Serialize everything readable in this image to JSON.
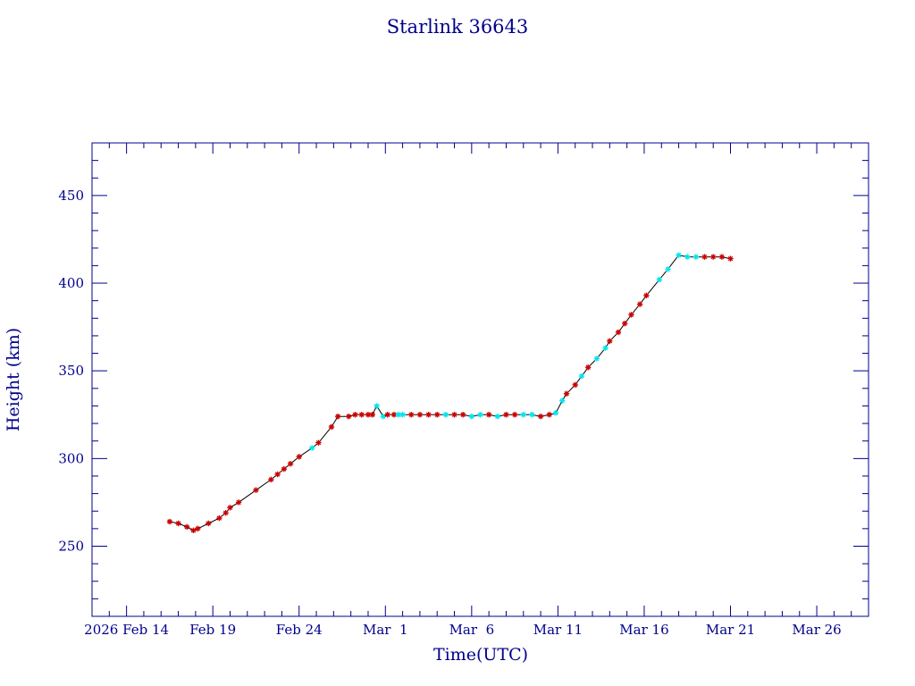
{
  "chart_data": {
    "type": "line",
    "title": "Starlink 36643",
    "xlabel": "Time(UTC)",
    "ylabel": "Height (km)",
    "x_range": [
      "2026-02-12",
      "2026-03-29"
    ],
    "ylim": [
      210,
      480
    ],
    "grid": false,
    "legend": "none",
    "colors": {
      "axes": "#00008b",
      "line": "#000000",
      "marker_primary": "#cc0000",
      "marker_secondary": "#00e5ee"
    },
    "x_ticks": [
      {
        "date": "2026-02-14",
        "label": "2026 Feb 14"
      },
      {
        "date": "2026-02-19",
        "label": "Feb 19"
      },
      {
        "date": "2026-02-24",
        "label": "Feb 24"
      },
      {
        "date": "2026-03-01",
        "label": "Mar  1"
      },
      {
        "date": "2026-03-06",
        "label": "Mar  6"
      },
      {
        "date": "2026-03-11",
        "label": "Mar 11"
      },
      {
        "date": "2026-03-16",
        "label": "Mar 16"
      },
      {
        "date": "2026-03-21",
        "label": "Mar 21"
      },
      {
        "date": "2026-03-26",
        "label": "Mar 26"
      }
    ],
    "y_ticks": [
      250,
      300,
      350,
      400,
      450
    ],
    "series": [
      {
        "points": [
          {
            "t": "2026-02-16T12:00",
            "h": 264,
            "m": "r"
          },
          {
            "t": "2026-02-17T00:00",
            "h": 263,
            "m": "r"
          },
          {
            "t": "2026-02-17T12:00",
            "h": 261,
            "m": "r"
          },
          {
            "t": "2026-02-17T21:00",
            "h": 259,
            "m": "r"
          },
          {
            "t": "2026-02-18T03:00",
            "h": 260,
            "m": "r"
          },
          {
            "t": "2026-02-18T18:00",
            "h": 263,
            "m": "r"
          },
          {
            "t": "2026-02-19T09:00",
            "h": 266,
            "m": "r"
          },
          {
            "t": "2026-02-19T18:00",
            "h": 269,
            "m": "r"
          },
          {
            "t": "2026-02-20T00:00",
            "h": 272,
            "m": "r"
          },
          {
            "t": "2026-02-20T12:00",
            "h": 275,
            "m": "r"
          },
          {
            "t": "2026-02-21T12:00",
            "h": 282,
            "m": "r"
          },
          {
            "t": "2026-02-22T09:00",
            "h": 288,
            "m": "r"
          },
          {
            "t": "2026-02-22T18:00",
            "h": 291,
            "m": "r"
          },
          {
            "t": "2026-02-23T03:00",
            "h": 294,
            "m": "r"
          },
          {
            "t": "2026-02-23T12:00",
            "h": 297,
            "m": "r"
          },
          {
            "t": "2026-02-24T00:00",
            "h": 301,
            "m": "r"
          },
          {
            "t": "2026-02-24T18:00",
            "h": 306,
            "m": "c"
          },
          {
            "t": "2026-02-25T03:00",
            "h": 309,
            "m": "r"
          },
          {
            "t": "2026-02-25T21:00",
            "h": 318,
            "m": "r"
          },
          {
            "t": "2026-02-26T06:00",
            "h": 324,
            "m": "r"
          },
          {
            "t": "2026-02-26T21:00",
            "h": 324,
            "m": "r"
          },
          {
            "t": "2026-02-27T06:00",
            "h": 325,
            "m": "r"
          },
          {
            "t": "2026-02-27T15:00",
            "h": 325,
            "m": "r"
          },
          {
            "t": "2026-02-28T00:00",
            "h": 325,
            "m": "r"
          },
          {
            "t": "2026-02-28T06:00",
            "h": 325,
            "m": "r"
          },
          {
            "t": "2026-02-28T12:00",
            "h": 330,
            "m": "c"
          },
          {
            "t": "2026-02-28T21:00",
            "h": 324,
            "m": "c"
          },
          {
            "t": "2026-03-01T03:00",
            "h": 325,
            "m": "r"
          },
          {
            "t": "2026-03-01T12:00",
            "h": 325,
            "m": "r"
          },
          {
            "t": "2026-03-01T18:00",
            "h": 325,
            "m": "c"
          },
          {
            "t": "2026-03-02T00:00",
            "h": 325,
            "m": "c"
          },
          {
            "t": "2026-03-02T12:00",
            "h": 325,
            "m": "r"
          },
          {
            "t": "2026-03-03T00:00",
            "h": 325,
            "m": "r"
          },
          {
            "t": "2026-03-03T12:00",
            "h": 325,
            "m": "r"
          },
          {
            "t": "2026-03-04T00:00",
            "h": 325,
            "m": "r"
          },
          {
            "t": "2026-03-04T12:00",
            "h": 325,
            "m": "c"
          },
          {
            "t": "2026-03-05T00:00",
            "h": 325,
            "m": "r"
          },
          {
            "t": "2026-03-05T12:00",
            "h": 325,
            "m": "r"
          },
          {
            "t": "2026-03-06T00:00",
            "h": 324,
            "m": "c"
          },
          {
            "t": "2026-03-06T12:00",
            "h": 325,
            "m": "c"
          },
          {
            "t": "2026-03-07T00:00",
            "h": 325,
            "m": "r"
          },
          {
            "t": "2026-03-07T12:00",
            "h": 324,
            "m": "c"
          },
          {
            "t": "2026-03-08T00:00",
            "h": 325,
            "m": "r"
          },
          {
            "t": "2026-03-08T12:00",
            "h": 325,
            "m": "r"
          },
          {
            "t": "2026-03-09T00:00",
            "h": 325,
            "m": "c"
          },
          {
            "t": "2026-03-09T12:00",
            "h": 325,
            "m": "c"
          },
          {
            "t": "2026-03-10T00:00",
            "h": 324,
            "m": "r"
          },
          {
            "t": "2026-03-10T12:00",
            "h": 325,
            "m": "r"
          },
          {
            "t": "2026-03-10T21:00",
            "h": 326,
            "m": "c"
          },
          {
            "t": "2026-03-11T06:00",
            "h": 333,
            "m": "c"
          },
          {
            "t": "2026-03-11T12:00",
            "h": 337,
            "m": "r"
          },
          {
            "t": "2026-03-12T00:00",
            "h": 342,
            "m": "r"
          },
          {
            "t": "2026-03-12T09:00",
            "h": 347,
            "m": "c"
          },
          {
            "t": "2026-03-12T18:00",
            "h": 352,
            "m": "r"
          },
          {
            "t": "2026-03-13T06:00",
            "h": 357,
            "m": "c"
          },
          {
            "t": "2026-03-13T18:00",
            "h": 363,
            "m": "c"
          },
          {
            "t": "2026-03-14T00:00",
            "h": 367,
            "m": "r"
          },
          {
            "t": "2026-03-14T12:00",
            "h": 372,
            "m": "r"
          },
          {
            "t": "2026-03-14T21:00",
            "h": 377,
            "m": "r"
          },
          {
            "t": "2026-03-15T06:00",
            "h": 382,
            "m": "r"
          },
          {
            "t": "2026-03-15T18:00",
            "h": 388,
            "m": "r"
          },
          {
            "t": "2026-03-16T03:00",
            "h": 393,
            "m": "r"
          },
          {
            "t": "2026-03-16T21:00",
            "h": 402,
            "m": "c"
          },
          {
            "t": "2026-03-17T09:00",
            "h": 408,
            "m": "c"
          },
          {
            "t": "2026-03-18T00:00",
            "h": 416,
            "m": "c"
          },
          {
            "t": "2026-03-18T12:00",
            "h": 415,
            "m": "c"
          },
          {
            "t": "2026-03-19T00:00",
            "h": 415,
            "m": "c"
          },
          {
            "t": "2026-03-19T12:00",
            "h": 415,
            "m": "r"
          },
          {
            "t": "2026-03-20T00:00",
            "h": 415,
            "m": "r"
          },
          {
            "t": "2026-03-20T12:00",
            "h": 415,
            "m": "r"
          },
          {
            "t": "2026-03-21T00:00",
            "h": 414,
            "m": "r"
          }
        ]
      }
    ]
  }
}
